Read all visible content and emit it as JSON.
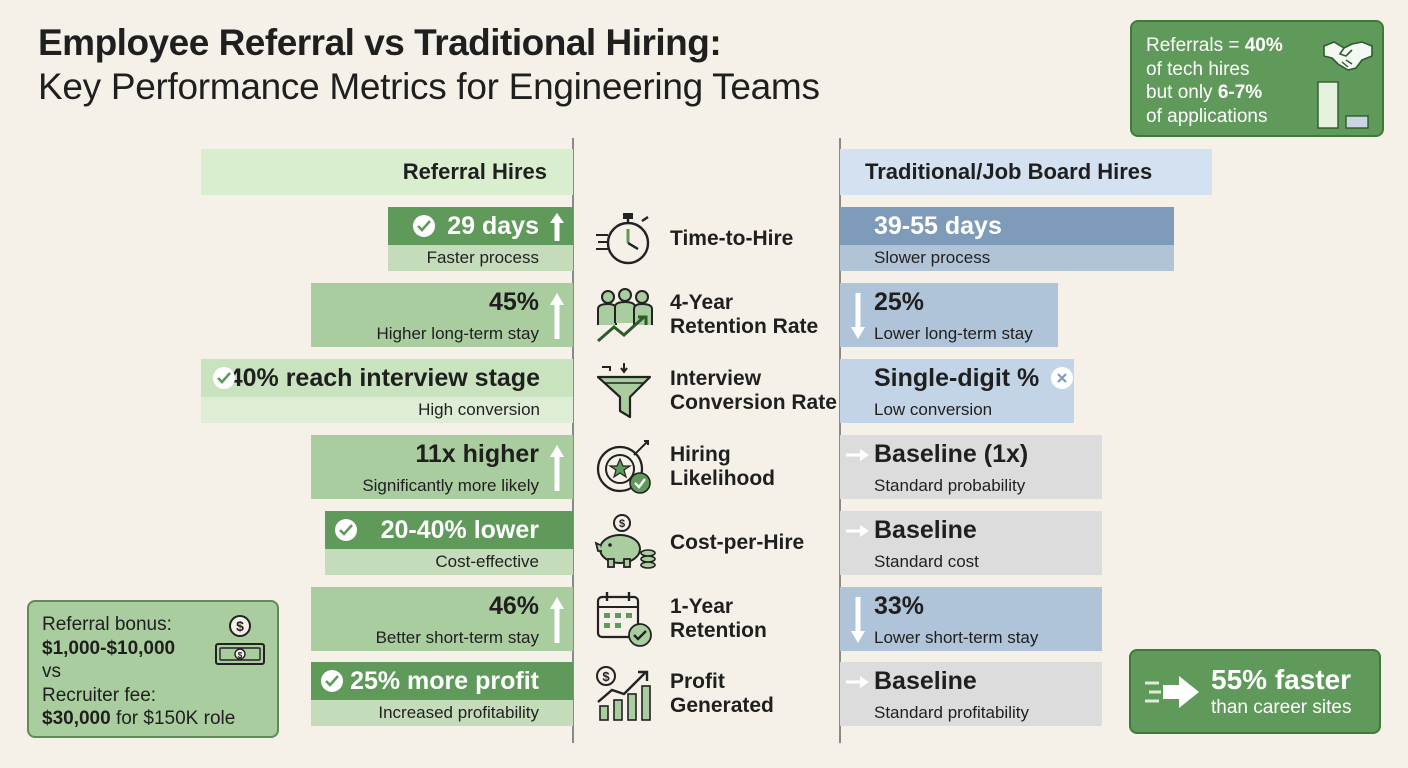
{
  "title": {
    "line1": "Employee Referral vs Traditional Hiring:",
    "line2": "Key Performance Metrics for Engineering Teams"
  },
  "callout_top": {
    "l1_pre": "Referrals = ",
    "l1_bold": "40%",
    "l2": "of tech hires",
    "l3_pre": "but only ",
    "l3_bold": "6-7%",
    "l4": "of applications"
  },
  "headers": {
    "left": "Referral Hires",
    "right": "Traditional/Job Board Hires"
  },
  "rows": [
    {
      "metric": "Time-to-Hire",
      "left_value": "29 days",
      "left_note": "Faster process",
      "right_value": "39-55 days",
      "right_note": "Slower process"
    },
    {
      "metric": "4-Year\nRetention Rate",
      "left_value": "45%",
      "left_note": "Higher long-term stay",
      "right_value": "25%",
      "right_note": "Lower long-term stay"
    },
    {
      "metric": "Interview\nConversion Rate",
      "left_value": "40% reach interview stage",
      "left_note": "High conversion",
      "right_value": "Single-digit %",
      "right_note": "Low conversion"
    },
    {
      "metric": "Hiring\nLikelihood",
      "left_value": "11x higher",
      "left_note": "Significantly more likely",
      "right_value": "Baseline (1x)",
      "right_note": "Standard probability"
    },
    {
      "metric": "Cost-per-Hire",
      "left_value": "20-40% lower",
      "left_note": "Cost-effective",
      "right_value": "Baseline",
      "right_note": "Standard cost"
    },
    {
      "metric": "1-Year\nRetention",
      "left_value": "46%",
      "left_note": "Better short-term stay",
      "right_value": "33%",
      "right_note": "Lower short-term stay"
    },
    {
      "metric": "Profit\nGenerated",
      "left_value": "25% more profit",
      "left_note": "Increased profitability",
      "right_value": "Baseline",
      "right_note": "Standard profitability"
    }
  ],
  "bonus_box": {
    "l1": "Referral bonus:",
    "l2": "$1,000-$10,000",
    "l3": "vs",
    "l4": "Recruiter fee:",
    "l5_bold": "$30,000",
    "l5_rest": " for $150K role"
  },
  "faster_box": {
    "big": "55% faster",
    "small": "than career sites"
  },
  "colors": {
    "green_strong": "#5f9a5a",
    "green_soft": "#a9cd9f",
    "blue_strong": "#7f9bba",
    "blue_soft": "#b0c4d9",
    "grey": "#dcdcdc"
  }
}
